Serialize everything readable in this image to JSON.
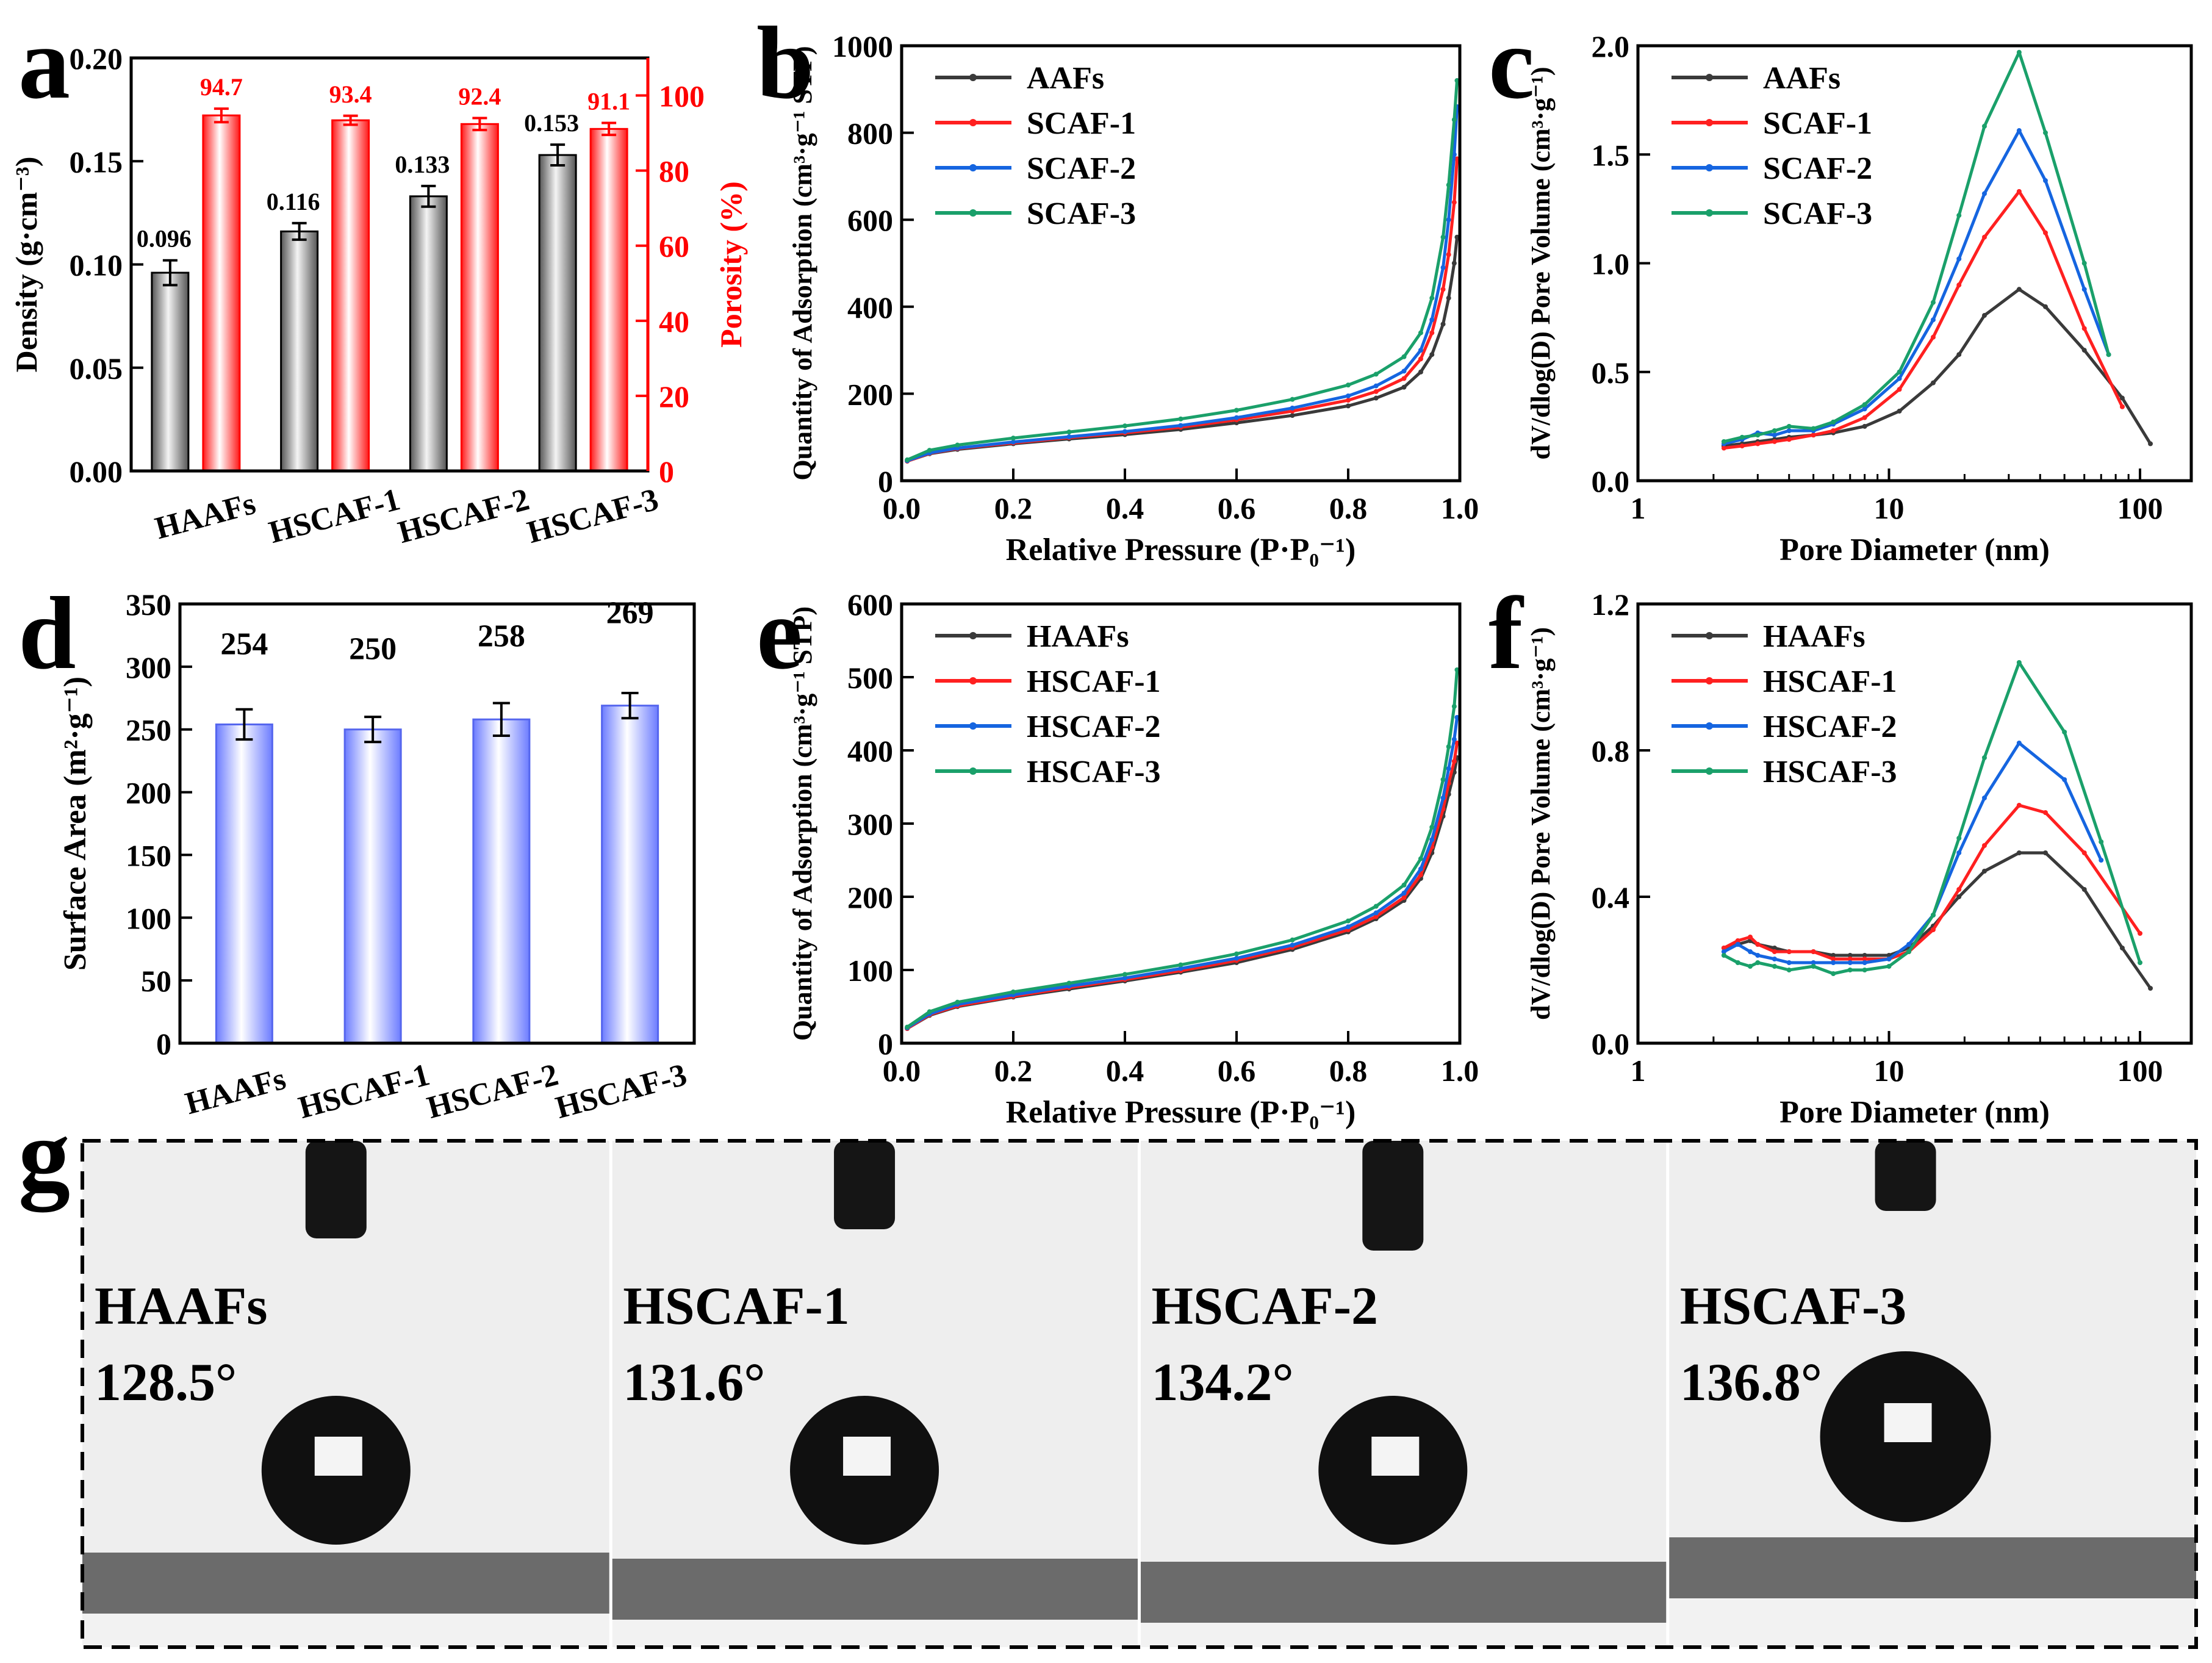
{
  "chart_data": [
    {
      "panel": "a",
      "type": "bar",
      "categories": [
        "HAAFs",
        "HSCAF-1",
        "HSCAF-2",
        "HSCAF-3"
      ],
      "ylabel": "Density (g·cm⁻³)",
      "ylim": [
        0,
        0.2
      ],
      "yticks": [
        "0.00",
        "0.05",
        "0.10",
        "0.15",
        "0.20"
      ],
      "y2label": "Porosity (%)",
      "y2lim": [
        0,
        110
      ],
      "y2ticks": [
        "0",
        "20",
        "40",
        "60",
        "80",
        "100"
      ],
      "series": [
        {
          "name": "Density",
          "axis": "left",
          "color": "#808080",
          "values": [
            0.096,
            0.116,
            0.133,
            0.153
          ],
          "errors": [
            0.006,
            0.004,
            0.005,
            0.005
          ],
          "labels": [
            "0.096",
            "0.116",
            "0.133",
            "0.153"
          ]
        },
        {
          "name": "Porosity",
          "axis": "right",
          "color": "#ff0000",
          "values": [
            94.7,
            93.4,
            92.4,
            91.1
          ],
          "errors": [
            1.8,
            1.2,
            1.6,
            1.6
          ],
          "labels": [
            "94.7",
            "93.4",
            "92.4",
            "91.1"
          ]
        }
      ]
    },
    {
      "panel": "b",
      "type": "line",
      "xlabel": "Relative Pressure (P·P₀⁻¹)",
      "ylabel": "Quantity of Adsorption (cm³·g⁻¹ STP)",
      "xlim": [
        0,
        1.0
      ],
      "ylim": [
        0,
        1000
      ],
      "xticks": [
        "0.0",
        "0.2",
        "0.4",
        "0.6",
        "0.8",
        "1.0"
      ],
      "yticks": [
        "0",
        "200",
        "400",
        "600",
        "800",
        "1000"
      ],
      "legend": "top-left",
      "series": [
        {
          "name": "AAFs",
          "color": "#3a3a3a",
          "x": [
            0.01,
            0.05,
            0.1,
            0.2,
            0.3,
            0.4,
            0.5,
            0.6,
            0.7,
            0.8,
            0.85,
            0.9,
            0.93,
            0.95,
            0.97,
            0.98,
            0.99,
            0.995
          ],
          "y": [
            45,
            62,
            72,
            85,
            96,
            106,
            118,
            133,
            150,
            172,
            190,
            215,
            250,
            290,
            360,
            420,
            500,
            560
          ]
        },
        {
          "name": "SCAF-1",
          "color": "#ff2020",
          "x": [
            0.01,
            0.05,
            0.1,
            0.2,
            0.3,
            0.4,
            0.5,
            0.6,
            0.7,
            0.8,
            0.85,
            0.9,
            0.93,
            0.95,
            0.97,
            0.98,
            0.99,
            0.995
          ],
          "y": [
            45,
            63,
            74,
            87,
            99,
            110,
            123,
            140,
            160,
            185,
            205,
            235,
            280,
            340,
            440,
            520,
            640,
            740
          ]
        },
        {
          "name": "SCAF-2",
          "color": "#1565e0",
          "x": [
            0.01,
            0.05,
            0.1,
            0.2,
            0.3,
            0.4,
            0.5,
            0.6,
            0.7,
            0.8,
            0.85,
            0.9,
            0.93,
            0.95,
            0.97,
            0.98,
            0.99,
            0.995
          ],
          "y": [
            46,
            64,
            75,
            89,
            101,
            113,
            127,
            145,
            167,
            195,
            218,
            252,
            300,
            370,
            490,
            600,
            750,
            860
          ]
        },
        {
          "name": "SCAF-3",
          "color": "#1aa06a",
          "x": [
            0.01,
            0.05,
            0.1,
            0.2,
            0.3,
            0.4,
            0.5,
            0.6,
            0.7,
            0.8,
            0.85,
            0.9,
            0.93,
            0.95,
            0.97,
            0.98,
            0.99,
            0.995
          ],
          "y": [
            48,
            70,
            82,
            98,
            112,
            126,
            142,
            162,
            187,
            220,
            245,
            285,
            340,
            420,
            560,
            680,
            830,
            920
          ]
        }
      ]
    },
    {
      "panel": "c",
      "type": "line",
      "xlabel": "Pore Diameter (nm)",
      "ylabel": "dV/dlog(D) Pore Volume (cm³·g⁻¹)",
      "xscale": "log",
      "xlim": [
        1,
        160
      ],
      "ylim": [
        0,
        2.0
      ],
      "xticks": [
        1,
        10,
        100
      ],
      "xticklabels": [
        "1",
        "10",
        "100"
      ],
      "yticks": [
        "0.0",
        "0.5",
        "1.0",
        "1.5",
        "2.0"
      ],
      "legend": "top-left",
      "series": [
        {
          "name": "AAFs",
          "color": "#3a3a3a",
          "x": [
            2.2,
            2.6,
            3,
            3.5,
            4,
            5,
            6,
            8,
            11,
            15,
            19,
            24,
            33,
            42,
            60,
            85,
            110
          ],
          "y": [
            0.16,
            0.17,
            0.18,
            0.19,
            0.2,
            0.21,
            0.22,
            0.25,
            0.32,
            0.45,
            0.58,
            0.76,
            0.88,
            0.8,
            0.6,
            0.38,
            0.17
          ]
        },
        {
          "name": "SCAF-1",
          "color": "#ff2020",
          "x": [
            2.2,
            2.6,
            3,
            3.5,
            4,
            5,
            6,
            8,
            11,
            15,
            19,
            24,
            33,
            42,
            60,
            85
          ],
          "y": [
            0.15,
            0.16,
            0.17,
            0.18,
            0.19,
            0.21,
            0.23,
            0.29,
            0.42,
            0.66,
            0.9,
            1.12,
            1.33,
            1.14,
            0.7,
            0.34
          ]
        },
        {
          "name": "SCAF-2",
          "color": "#1565e0",
          "x": [
            2.2,
            2.6,
            3,
            3.5,
            4,
            5,
            6,
            8,
            11,
            15,
            19,
            24,
            33,
            42,
            60,
            75
          ],
          "y": [
            0.17,
            0.19,
            0.22,
            0.21,
            0.23,
            0.23,
            0.26,
            0.33,
            0.47,
            0.74,
            1.02,
            1.32,
            1.61,
            1.38,
            0.88,
            0.58
          ]
        },
        {
          "name": "SCAF-3",
          "color": "#1aa06a",
          "x": [
            2.2,
            2.6,
            3,
            3.5,
            4,
            5,
            6,
            8,
            11,
            15,
            19,
            24,
            33,
            42,
            60,
            75
          ],
          "y": [
            0.18,
            0.2,
            0.21,
            0.23,
            0.25,
            0.24,
            0.27,
            0.35,
            0.5,
            0.82,
            1.22,
            1.63,
            1.97,
            1.6,
            1.0,
            0.58
          ]
        }
      ]
    },
    {
      "panel": "d",
      "type": "bar",
      "categories": [
        "HAAFs",
        "HSCAF-1",
        "HSCAF-2",
        "HSCAF-3"
      ],
      "ylabel": "Surface Area (m²·g⁻¹)",
      "ylim": [
        0,
        350
      ],
      "yticks": [
        "0",
        "50",
        "100",
        "150",
        "200",
        "250",
        "300",
        "350"
      ],
      "values": [
        254,
        250,
        258,
        269
      ],
      "errors": [
        12,
        10,
        13,
        10
      ],
      "labels": [
        "254",
        "250",
        "258",
        "269"
      ],
      "color": "#8c9cff"
    },
    {
      "panel": "e",
      "type": "line",
      "xlabel": "Relative Pressure (P·P₀⁻¹)",
      "ylabel": "Quantity of Adsorption (cm³·g⁻¹ STP)",
      "xlim": [
        0,
        1.0
      ],
      "ylim": [
        0,
        600
      ],
      "xticks": [
        "0.0",
        "0.2",
        "0.4",
        "0.6",
        "0.8",
        "1.0"
      ],
      "yticks": [
        "0",
        "100",
        "200",
        "300",
        "400",
        "500",
        "600"
      ],
      "legend": "top-left",
      "series": [
        {
          "name": "HAAFs",
          "color": "#3a3a3a",
          "x": [
            0.01,
            0.05,
            0.1,
            0.2,
            0.3,
            0.4,
            0.5,
            0.6,
            0.7,
            0.8,
            0.85,
            0.9,
            0.93,
            0.95,
            0.97,
            0.98,
            0.99,
            0.995
          ],
          "y": [
            20,
            38,
            50,
            63,
            74,
            85,
            97,
            110,
            128,
            152,
            170,
            195,
            225,
            260,
            310,
            340,
            370,
            390
          ]
        },
        {
          "name": "HSCAF-1",
          "color": "#ff2020",
          "x": [
            0.01,
            0.05,
            0.1,
            0.2,
            0.3,
            0.4,
            0.5,
            0.6,
            0.7,
            0.8,
            0.85,
            0.9,
            0.93,
            0.95,
            0.97,
            0.98,
            0.99,
            0.995
          ],
          "y": [
            20,
            39,
            51,
            64,
            76,
            87,
            99,
            113,
            131,
            155,
            173,
            199,
            230,
            268,
            320,
            355,
            385,
            410
          ]
        },
        {
          "name": "HSCAF-2",
          "color": "#1565e0",
          "x": [
            0.01,
            0.05,
            0.1,
            0.2,
            0.3,
            0.4,
            0.5,
            0.6,
            0.7,
            0.8,
            0.85,
            0.9,
            0.93,
            0.95,
            0.97,
            0.98,
            0.99,
            0.995
          ],
          "y": [
            21,
            40,
            53,
            66,
            78,
            89,
            102,
            116,
            134,
            159,
            178,
            205,
            238,
            278,
            335,
            375,
            415,
            445
          ]
        },
        {
          "name": "HSCAF-3",
          "color": "#1aa06a",
          "x": [
            0.01,
            0.05,
            0.1,
            0.2,
            0.3,
            0.4,
            0.5,
            0.6,
            0.7,
            0.8,
            0.85,
            0.9,
            0.93,
            0.95,
            0.97,
            0.98,
            0.99,
            0.995
          ],
          "y": [
            22,
            43,
            56,
            70,
            82,
            94,
            107,
            122,
            141,
            167,
            187,
            216,
            252,
            295,
            360,
            405,
            460,
            510
          ]
        }
      ]
    },
    {
      "panel": "f",
      "type": "line",
      "xlabel": "Pore Diameter (nm)",
      "ylabel": "dV/dlog(D) Pore Volume (cm³·g⁻¹)",
      "xscale": "log",
      "xlim": [
        1,
        160
      ],
      "ylim": [
        0,
        1.2
      ],
      "xticks": [
        1,
        10,
        100
      ],
      "xticklabels": [
        "1",
        "10",
        "100"
      ],
      "yticks": [
        "0.0",
        "0.4",
        "0.8",
        "1.2"
      ],
      "legend": "top-left",
      "series": [
        {
          "name": "HAAFs",
          "color": "#3a3a3a",
          "x": [
            2.2,
            2.5,
            2.8,
            3,
            3.5,
            4,
            5,
            6,
            7,
            8,
            10,
            12,
            15,
            19,
            24,
            33,
            42,
            60,
            85,
            110
          ],
          "y": [
            0.26,
            0.27,
            0.28,
            0.27,
            0.26,
            0.25,
            0.25,
            0.24,
            0.24,
            0.24,
            0.24,
            0.26,
            0.32,
            0.4,
            0.47,
            0.52,
            0.52,
            0.42,
            0.26,
            0.15
          ]
        },
        {
          "name": "HSCAF-1",
          "color": "#ff2020",
          "x": [
            2.2,
            2.5,
            2.8,
            3,
            3.5,
            4,
            5,
            6,
            7,
            8,
            10,
            12,
            15,
            19,
            24,
            33,
            42,
            60,
            100
          ],
          "y": [
            0.26,
            0.28,
            0.29,
            0.27,
            0.25,
            0.25,
            0.25,
            0.23,
            0.23,
            0.23,
            0.23,
            0.25,
            0.31,
            0.42,
            0.54,
            0.65,
            0.63,
            0.52,
            0.3
          ]
        },
        {
          "name": "HSCAF-2",
          "color": "#1565e0",
          "x": [
            2.2,
            2.5,
            2.8,
            3,
            3.5,
            4,
            5,
            6,
            7,
            8,
            10,
            12,
            15,
            19,
            24,
            33,
            50,
            70
          ],
          "y": [
            0.25,
            0.27,
            0.25,
            0.24,
            0.23,
            0.22,
            0.22,
            0.22,
            0.22,
            0.22,
            0.23,
            0.27,
            0.35,
            0.52,
            0.67,
            0.82,
            0.72,
            0.5
          ]
        },
        {
          "name": "HSCAF-3",
          "color": "#1aa06a",
          "x": [
            2.2,
            2.5,
            2.8,
            3,
            3.5,
            4,
            5,
            6,
            7,
            8,
            10,
            12,
            15,
            19,
            24,
            33,
            50,
            70,
            100
          ],
          "y": [
            0.24,
            0.22,
            0.21,
            0.22,
            0.21,
            0.2,
            0.21,
            0.19,
            0.2,
            0.2,
            0.21,
            0.25,
            0.35,
            0.56,
            0.78,
            1.04,
            0.85,
            0.55,
            0.22
          ]
        }
      ]
    }
  ],
  "panel_letters": [
    "a",
    "b",
    "c",
    "d",
    "e",
    "f",
    "g"
  ],
  "photos": [
    {
      "sample": "HAAFs",
      "angle": "128.5°"
    },
    {
      "sample": "HSCAF-1",
      "angle": "131.6°"
    },
    {
      "sample": "HSCAF-2",
      "angle": "134.2°"
    },
    {
      "sample": "HSCAF-3",
      "angle": "136.8°"
    }
  ]
}
